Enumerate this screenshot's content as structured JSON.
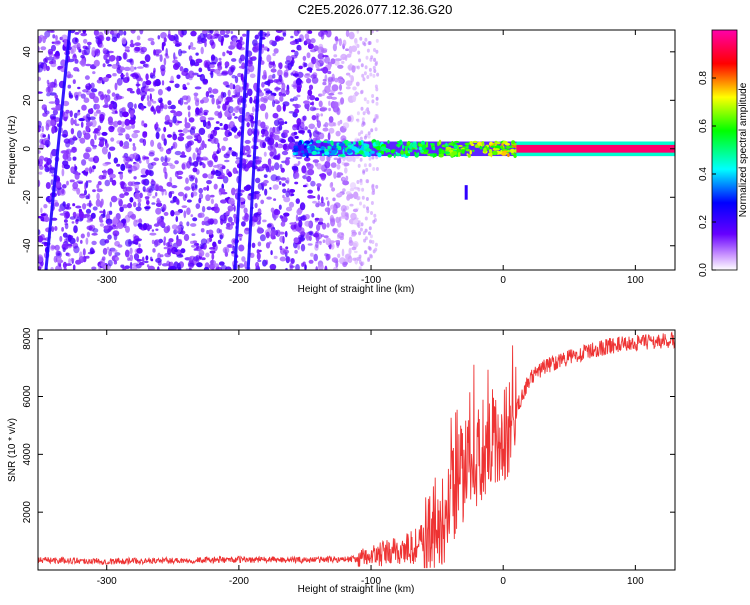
{
  "title": "C2E5.2026.077.12.36.G20",
  "chart_data": [
    {
      "type": "heatmap",
      "description_text": "Spectrogram panel",
      "xlabel": "Height of straight line (km)",
      "ylabel": "Frequency (Hz)",
      "xlim": [
        -352,
        130
      ],
      "ylim": [
        -50,
        49
      ],
      "xticks": [
        -300,
        -200,
        -100,
        0,
        100
      ],
      "yticks": [
        -40,
        -20,
        0,
        20,
        40
      ],
      "colorbar": {
        "label": "Normalized spectral amplitude",
        "range": [
          0.0,
          1.0
        ],
        "ticks": [
          0.0,
          0.2,
          0.4,
          0.6,
          0.8
        ],
        "tick_labels": [
          "0.0",
          "0.2",
          "0.4",
          "0.6",
          "0.8"
        ],
        "colors": [
          "#ffffff",
          "#6600ff",
          "#0000ff",
          "#00ffff",
          "#00ff00",
          "#ffff00",
          "#ff0000",
          "#ff00aa"
        ]
      },
      "features": {
        "noise_region_x": [
          -352,
          -110
        ],
        "fading_noise_x": [
          -110,
          -95
        ],
        "signal_band": {
          "x_start": -158,
          "x_end": 130,
          "center_hz": 0,
          "half_width_hz": 3
        },
        "strong_line": {
          "x_start": 10,
          "x_end": 130,
          "center_hz": 0
        },
        "stripes": [
          {
            "x_top": -328,
            "x_bottom": -346
          },
          {
            "x_top": -193,
            "x_bottom": -203
          },
          {
            "x_top": -183,
            "x_bottom": -193
          }
        ],
        "spur": {
          "x": -28,
          "hz_from": -15,
          "hz_to": -21
        }
      }
    },
    {
      "type": "line",
      "description_text": "SNR profile",
      "xlabel": "Height of straight line (km)",
      "ylabel": "SNR (10 * v/v)",
      "xlim": [
        -352,
        130
      ],
      "ylim": [
        0,
        8300
      ],
      "xticks": [
        -300,
        -200,
        -100,
        0,
        100
      ],
      "yticks": [
        2000,
        4000,
        6000,
        8000
      ],
      "color": "#ee3333",
      "series": [
        {
          "name": "SNR",
          "x": [
            -352,
            -300,
            -250,
            -200,
            -150,
            -110,
            -100,
            -85,
            -70,
            -55,
            -45,
            -35,
            -25,
            -15,
            -10,
            -5,
            0,
            5,
            10,
            20,
            30,
            40,
            60,
            80,
            100,
            130
          ],
          "values": [
            350,
            300,
            330,
            360,
            350,
            380,
            480,
            600,
            750,
            1100,
            2000,
            3000,
            3700,
            4200,
            4500,
            4500,
            4700,
            5000,
            5600,
            6600,
            7000,
            7200,
            7500,
            7750,
            7850,
            7950
          ]
        }
      ]
    }
  ]
}
